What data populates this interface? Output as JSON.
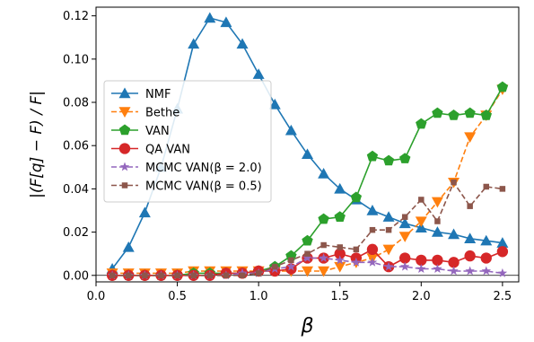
{
  "chart_data": {
    "type": "line",
    "xlabel": "β",
    "ylabel": "|(F[q] − F) / F|",
    "xlim": [
      0.0,
      2.6
    ],
    "ylim": [
      -0.003,
      0.124
    ],
    "xticks": [
      0.0,
      0.5,
      1.0,
      1.5,
      2.0,
      2.5
    ],
    "xtick_labels": [
      "0.0",
      "0.5",
      "1.0",
      "1.5",
      "2.0",
      "2.5"
    ],
    "yticks": [
      0.0,
      0.02,
      0.04,
      0.06,
      0.08,
      0.1,
      0.12
    ],
    "ytick_labels": [
      "0.00",
      "0.02",
      "0.04",
      "0.06",
      "0.08",
      "0.10",
      "0.12"
    ],
    "grid": false,
    "legend_position": "center-left",
    "reference_line_y": 0.0,
    "x": [
      0.1,
      0.2,
      0.3,
      0.4,
      0.5,
      0.6,
      0.7,
      0.8,
      0.9,
      1.0,
      1.1,
      1.2,
      1.3,
      1.4,
      1.5,
      1.6,
      1.7,
      1.8,
      1.9,
      2.0,
      2.1,
      2.2,
      2.3,
      2.4,
      2.5
    ],
    "series": [
      {
        "name": "NMF",
        "color": "#1f77b4",
        "marker": "triangle-up",
        "dashed": false,
        "values": [
          0.003,
          0.013,
          0.029,
          0.05,
          0.077,
          0.107,
          0.119,
          0.117,
          0.107,
          0.093,
          0.079,
          0.067,
          0.056,
          0.047,
          0.04,
          0.035,
          0.03,
          0.027,
          0.024,
          0.022,
          0.02,
          0.019,
          0.017,
          0.016,
          0.015
        ]
      },
      {
        "name": "Bethe",
        "color": "#ff7f0e",
        "marker": "triangle-down",
        "dashed": true,
        "values": [
          0.001,
          0.001,
          0.001,
          0.001,
          0.001,
          0.002,
          0.002,
          0.002,
          0.002,
          0.002,
          0.002,
          0.002,
          0.002,
          0.002,
          0.004,
          0.006,
          0.008,
          0.012,
          0.018,
          0.025,
          0.034,
          0.043,
          0.064,
          0.074,
          0.086
        ]
      },
      {
        "name": "VAN",
        "color": "#2ca02c",
        "marker": "pentagon",
        "dashed": false,
        "values": [
          0.0,
          0.0,
          0.0,
          0.0,
          0.0,
          0.001,
          0.001,
          0.001,
          0.001,
          0.002,
          0.004,
          0.009,
          0.016,
          0.026,
          0.027,
          0.036,
          0.055,
          0.053,
          0.054,
          0.07,
          0.075,
          0.074,
          0.075,
          0.074,
          0.087
        ]
      },
      {
        "name": "QA VAN",
        "color": "#d62728",
        "marker": "circle",
        "dashed": false,
        "values": [
          0.0,
          0.0,
          0.0,
          0.0,
          0.0,
          0.0,
          0.0,
          0.001,
          0.001,
          0.002,
          0.002,
          0.003,
          0.008,
          0.008,
          0.01,
          0.008,
          0.012,
          0.004,
          0.008,
          0.007,
          0.007,
          0.006,
          0.009,
          0.008,
          0.011
        ]
      },
      {
        "name": "MCMC VAN(β = 2.0)",
        "color": "#9467bd",
        "marker": "star",
        "dashed": true,
        "values": [
          0.0,
          0.0,
          0.0,
          0.0,
          0.0,
          0.0,
          0.0,
          0.0,
          0.001,
          0.001,
          0.003,
          0.004,
          0.008,
          0.008,
          0.007,
          0.006,
          0.006,
          0.004,
          0.004,
          0.003,
          0.003,
          0.002,
          0.002,
          0.002,
          0.001
        ]
      },
      {
        "name": "MCMC VAN(β = 0.5)",
        "color": "#8c564b",
        "marker": "square",
        "dashed": true,
        "values": [
          0.0,
          0.0,
          0.0,
          0.0,
          0.0,
          0.0,
          0.0,
          0.0,
          0.0,
          0.001,
          0.004,
          0.007,
          0.01,
          0.014,
          0.013,
          0.012,
          0.021,
          0.021,
          0.027,
          0.035,
          0.025,
          0.043,
          0.032,
          0.041,
          0.04
        ]
      }
    ]
  }
}
